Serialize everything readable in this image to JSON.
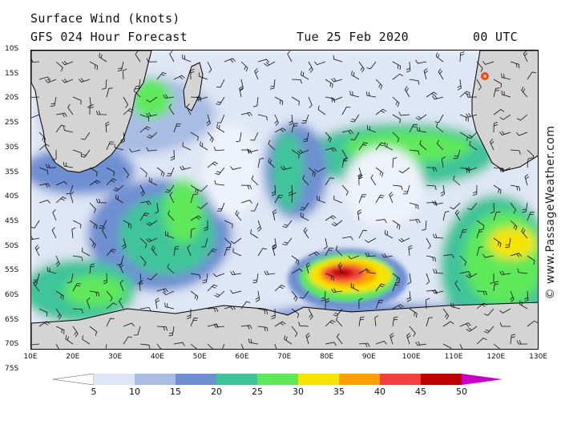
{
  "header": {
    "title": "Surface Wind (knots)",
    "forecast": "GFS 024 Hour Forecast",
    "date": "Tue 25 Feb 2020",
    "time": "00 UTC"
  },
  "map": {
    "latitude_labels": [
      "10S",
      "15S",
      "20S",
      "25S",
      "30S",
      "35S",
      "40S",
      "45S",
      "50S",
      "55S",
      "60S",
      "65S",
      "70S",
      "75S"
    ],
    "longitude_labels": [
      "10E",
      "20E",
      "30E",
      "40E",
      "50E",
      "60E",
      "70E",
      "80E",
      "90E",
      "100E",
      "110E",
      "120E",
      "130E"
    ],
    "colors": {
      "land": "#d4d4d4",
      "coast": "#000000",
      "barb": "#111111"
    }
  },
  "legend": {
    "labels": [
      "5",
      "10",
      "15",
      "20",
      "25",
      "30",
      "35",
      "40",
      "45",
      "50"
    ],
    "colors": [
      "#ffffff",
      "#dfe6f5",
      "#a9bde3",
      "#6e8fd2",
      "#3fc49a",
      "#5ee85a",
      "#f5e400",
      "#ffa000",
      "#f24040",
      "#c00000",
      "#c800c8"
    ]
  },
  "watermark": "© www.PassageWeather.com"
}
